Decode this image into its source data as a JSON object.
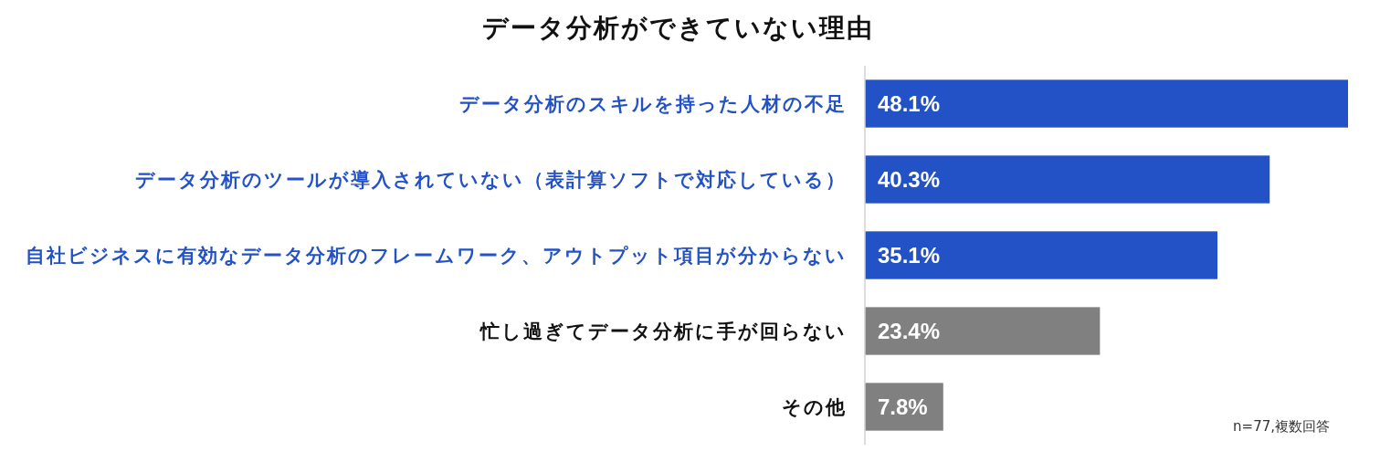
{
  "chart_data": {
    "type": "bar",
    "orientation": "horizontal",
    "title": "データ分析ができていない理由",
    "categories": [
      "データ分析のスキルを持った人材の不足",
      "データ分析のツールが導入されていない（表計算ソフトで対応している）",
      "自社ビジネスに有効なデータ分析のフレームワーク、アウトプット項目が分からない",
      "忙し過ぎてデータ分析に手が回らない",
      "その他"
    ],
    "values": [
      48.1,
      40.3,
      35.1,
      23.4,
      7.8
    ],
    "value_labels": [
      "48.1%",
      "40.3%",
      "35.1%",
      "23.4%",
      "7.8%"
    ],
    "colors": [
      "#2352c6",
      "#2352c6",
      "#2352c6",
      "#808080",
      "#808080"
    ],
    "annotations": [
      "n=77,複数回答"
    ]
  }
}
